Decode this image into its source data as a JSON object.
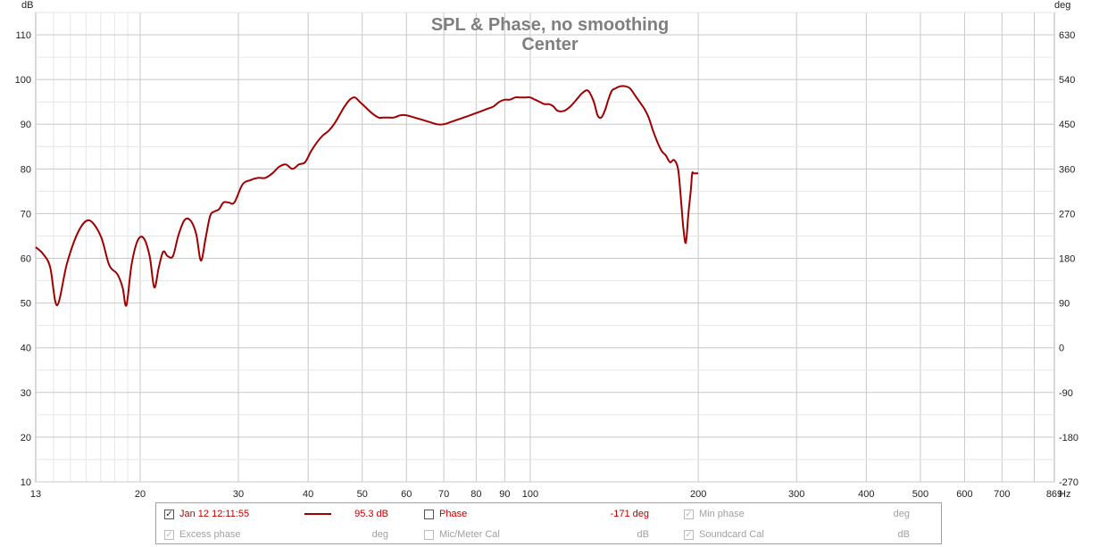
{
  "chart_data": {
    "type": "line",
    "title": "SPL & Phase, no smoothing",
    "subtitle": "Center",
    "ylabel": "dB",
    "y2label": "deg",
    "xunit": "Hz",
    "xscale": "log",
    "xlim": [
      13,
      869
    ],
    "ylim": [
      10,
      115
    ],
    "y2lim": [
      -270,
      675
    ],
    "grid": true,
    "x_ticks": [
      13,
      20,
      30,
      40,
      50,
      60,
      70,
      80,
      90,
      100,
      200,
      300,
      400,
      500,
      600,
      700,
      869
    ],
    "x_tick_labels": [
      "13",
      "20",
      "30",
      "40",
      "50",
      "60",
      "70",
      "80",
      "90",
      "100",
      "200",
      "300",
      "400",
      "500",
      "600",
      "700",
      "869"
    ],
    "y_ticks": [
      10,
      20,
      30,
      40,
      50,
      60,
      70,
      80,
      90,
      100,
      110
    ],
    "y2_ticks": [
      -270,
      -180,
      -90,
      0,
      90,
      180,
      270,
      360,
      450,
      540,
      630
    ],
    "series": [
      {
        "name": "Jan 12 12:11:55",
        "color": "#a00000",
        "x": [
          13,
          13.4,
          13.8,
          14.2,
          14.8,
          15.5,
          16.2,
          17.0,
          17.6,
          18.2,
          18.6,
          18.9,
          19.3,
          19.8,
          20.3,
          20.8,
          21.2,
          21.6,
          22.0,
          22.4,
          22.9,
          23.4,
          24.0,
          24.6,
          25.2,
          25.7,
          26.2,
          26.7,
          27.2,
          27.7,
          28.2,
          28.8,
          29.5,
          30.5,
          31.5,
          32.5,
          33.5,
          34.5,
          35.5,
          36.5,
          37.5,
          38.5,
          39.5,
          40.5,
          41.5,
          42.5,
          43.5,
          44.5,
          45.5,
          46.5,
          47.5,
          48.5,
          49.5,
          50.5,
          52.0,
          53.5,
          54.5,
          55.5,
          57.0,
          58.5,
          60.0,
          62.0,
          64.0,
          66.0,
          68.0,
          70.0,
          72.0,
          74.0,
          76.0,
          78.0,
          80.0,
          82.0,
          84.0,
          86.0,
          88.0,
          90.0,
          92.0,
          94.0,
          96.0,
          98.0,
          100.0,
          102.0,
          104.0,
          106.0,
          108.0,
          110.0,
          112.0,
          115.0,
          118.0,
          121.0,
          124.0,
          127.0,
          130.0,
          132.0,
          134.0,
          136.0,
          138.0,
          140.0,
          142.0,
          145.0,
          148.0,
          151.0,
          154.0,
          157.0,
          160.0,
          163.0,
          166.0,
          169.0,
          172.0,
          175.0,
          178.0,
          181.0,
          184.0,
          186.0,
          188.0,
          190.0,
          192.0,
          194.0,
          195.0,
          196.0,
          197.0,
          198.0,
          199.0,
          200.0
        ],
        "y": [
          62.5,
          61.0,
          58.0,
          49.5,
          59.0,
          66.0,
          68.5,
          65.0,
          58.5,
          56.5,
          53.5,
          49.5,
          58.5,
          64.0,
          64.5,
          60.5,
          53.5,
          58.0,
          61.5,
          60.5,
          60.5,
          65.0,
          68.5,
          68.5,
          65.5,
          59.5,
          64.5,
          69.5,
          70.5,
          71.0,
          72.5,
          72.5,
          72.5,
          76.5,
          77.5,
          78.0,
          78.0,
          79.0,
          80.5,
          81.0,
          80.0,
          81.0,
          81.5,
          84.0,
          86.0,
          87.5,
          88.5,
          90.0,
          92.0,
          94.0,
          95.5,
          96.0,
          95.0,
          94.0,
          92.5,
          91.5,
          91.5,
          91.5,
          91.5,
          92.0,
          92.0,
          91.5,
          91.0,
          90.5,
          90.0,
          90.0,
          90.5,
          91.0,
          91.5,
          92.0,
          92.5,
          93.0,
          93.5,
          94.0,
          95.0,
          95.5,
          95.5,
          96.0,
          96.0,
          96.0,
          96.0,
          95.5,
          95.0,
          94.5,
          94.5,
          94.0,
          93.0,
          93.0,
          94.0,
          95.5,
          97.0,
          97.5,
          95.0,
          92.0,
          91.5,
          93.0,
          95.5,
          97.5,
          98.0,
          98.5,
          98.5,
          98.0,
          96.5,
          95.0,
          93.5,
          91.5,
          88.5,
          86.0,
          84.0,
          83.0,
          81.5,
          82.0,
          80.0,
          74.0,
          67.0,
          63.5,
          70.0,
          75.5,
          79.0,
          79.0,
          79.0,
          79.0,
          79.0,
          79.0
        ]
      }
    ]
  },
  "legend": {
    "row1": {
      "trace_name": "Jan 12 12:11:55",
      "trace_checked": "✓",
      "trace_value": "95.3 dB",
      "phase_label": "Phase",
      "phase_value": "-171 deg",
      "min_phase_label": "Min phase",
      "min_phase_checked": "✓",
      "min_phase_unit": "deg"
    },
    "row2": {
      "excess_phase_label": "Excess phase",
      "excess_phase_checked": "✓",
      "excess_phase_unit": "deg",
      "mic_cal_label": "Mic/Meter Cal",
      "mic_cal_unit": "dB",
      "soundcard_cal_label": "Soundcard Cal",
      "soundcard_cal_checked": "✓",
      "soundcard_cal_unit": "dB"
    }
  }
}
